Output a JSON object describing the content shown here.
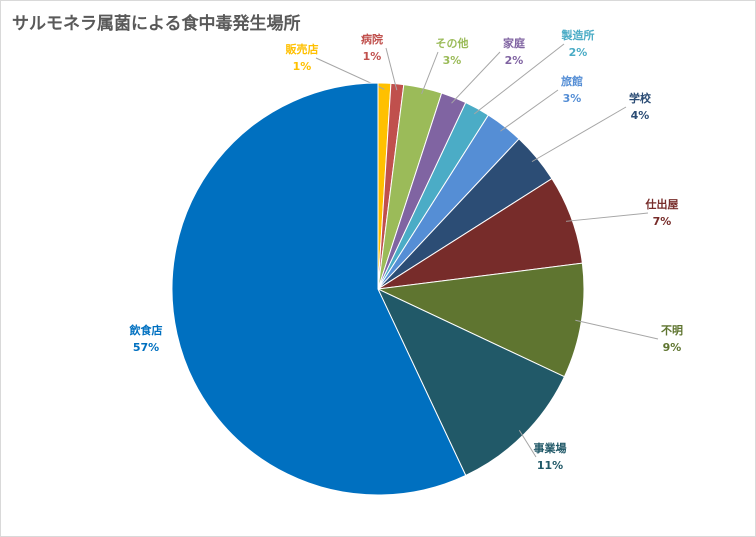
{
  "chart_data": {
    "type": "pie",
    "title": "サルモネラ属菌による食中毒発生場所",
    "categories": [
      "販売店",
      "病院",
      "その他",
      "家庭",
      "製造所",
      "旅館",
      "学校",
      "仕出屋",
      "不明",
      "事業場",
      "飲食店"
    ],
    "values": [
      1,
      1,
      3,
      2,
      2,
      3,
      4,
      7,
      9,
      11,
      57
    ],
    "value_labels": [
      "1%",
      "1%",
      "3%",
      "2%",
      "2%",
      "3%",
      "4%",
      "7%",
      "9%",
      "11%",
      "57%"
    ],
    "colors": [
      "#ffc000",
      "#c0504d",
      "#9bbb59",
      "#8064a2",
      "#4bacc6",
      "#558ed5",
      "#2c4d75",
      "#772c2a",
      "#5f7530",
      "#215968",
      "#0070c0"
    ]
  }
}
